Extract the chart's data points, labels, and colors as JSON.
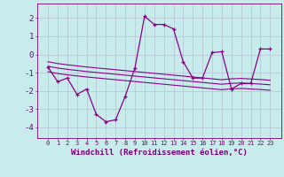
{
  "xlabel": "Windchill (Refroidissement éolien,°C)",
  "bg_color": "#c8ecec",
  "line_color": "#880088",
  "grid_color": "#b0b8cc",
  "x_values": [
    0,
    1,
    2,
    3,
    4,
    5,
    6,
    7,
    8,
    9,
    10,
    11,
    12,
    13,
    14,
    15,
    16,
    17,
    18,
    19,
    20,
    21,
    22,
    23
  ],
  "main_line": [
    -0.7,
    -1.5,
    -1.3,
    -2.2,
    -1.9,
    -3.3,
    -3.7,
    -3.6,
    -2.3,
    -0.75,
    2.1,
    1.65,
    1.65,
    1.4,
    -0.4,
    -1.3,
    -1.3,
    0.1,
    0.15,
    -1.9,
    -1.6,
    -1.6,
    0.3,
    0.3
  ],
  "trend_line1": [
    -0.65,
    -0.75,
    -0.82,
    -0.88,
    -0.94,
    -0.99,
    -1.04,
    -1.09,
    -1.14,
    -1.19,
    -1.24,
    -1.29,
    -1.34,
    -1.39,
    -1.44,
    -1.49,
    -1.54,
    -1.59,
    -1.64,
    -1.59,
    -1.57,
    -1.6,
    -1.63,
    -1.67
  ],
  "trend_line2": [
    -0.95,
    -1.05,
    -1.12,
    -1.18,
    -1.24,
    -1.29,
    -1.34,
    -1.39,
    -1.44,
    -1.49,
    -1.54,
    -1.59,
    -1.64,
    -1.69,
    -1.74,
    -1.79,
    -1.84,
    -1.89,
    -1.94,
    -1.89,
    -1.87,
    -1.9,
    -1.93,
    -1.97
  ],
  "trend_line3": [
    -0.4,
    -0.5,
    -0.57,
    -0.63,
    -0.69,
    -0.74,
    -0.79,
    -0.84,
    -0.89,
    -0.94,
    -0.99,
    -1.04,
    -1.09,
    -1.14,
    -1.19,
    -1.24,
    -1.29,
    -1.34,
    -1.39,
    -1.34,
    -1.32,
    -1.35,
    -1.38,
    -1.42
  ],
  "ylim": [
    -4.6,
    2.8
  ],
  "yticks": [
    -4,
    -3,
    -2,
    -1,
    0,
    1,
    2
  ],
  "xlabels": [
    "0",
    "1",
    "2",
    "3",
    "4",
    "5",
    "6",
    "7",
    "8",
    "9",
    "10",
    "11",
    "12",
    "13",
    "14",
    "15",
    "16",
    "17",
    "18",
    "19",
    "20",
    "21",
    "22",
    "23"
  ],
  "xtick_fontsize": 5.0,
  "ytick_fontsize": 6.5,
  "xlabel_fontsize": 6.5
}
